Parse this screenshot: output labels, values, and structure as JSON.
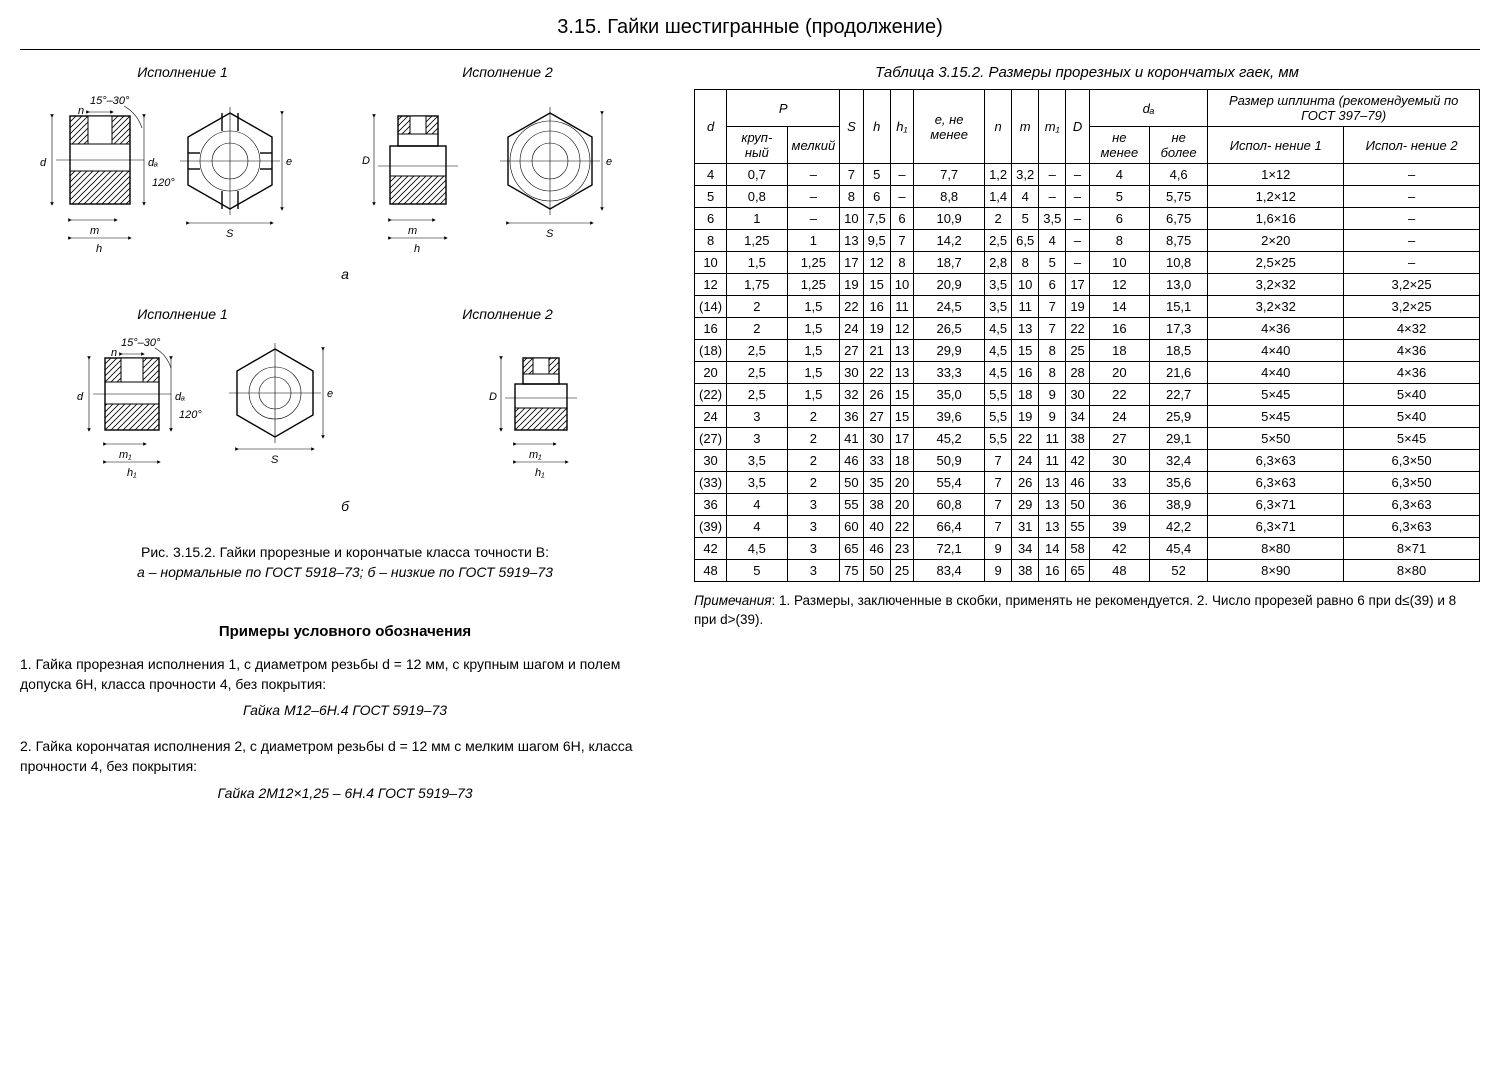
{
  "title": "3.15. Гайки шестигранные (продолжение)",
  "figure": {
    "exec1": "Исполнение 1",
    "exec2": "Исполнение 2",
    "label_a": "а",
    "label_b": "б",
    "angle": "15°–30°",
    "angle120": "120°",
    "d": "d",
    "da": "dₐ",
    "n": "n",
    "e": "e",
    "m": "m",
    "h": "h",
    "D": "D",
    "S": "S",
    "m1": "m₁",
    "h1": "h₁",
    "caption_line1": "Рис. 3.15.2. Гайки прорезные и корончатые класса точности В:",
    "caption_line2": "а – нормальные по ГОСТ 5918–73; б – низкие по ГОСТ 5919–73"
  },
  "examples": {
    "title": "Примеры условного обозначения",
    "ex1_text": "1. Гайка прорезная исполнения 1, с диаметром резьбы d = 12 мм, с крупным шагом и полем допуска 6Н, класса прочности 4, без покрытия:",
    "ex1_des": "Гайка М12–6Н.4 ГОСТ 5919–73",
    "ex2_text": "2. Гайка корончатая исполнения 2, с диаметром резьбы d = 12 мм с мелким шагом 6Н, класса прочности 4, без покрытия:",
    "ex2_des": "Гайка 2М12×1,25 – 6Н.4 ГОСТ 5919–73"
  },
  "table": {
    "caption": "Таблица 3.15.2.  Размеры прорезных  и корончатых гаек, мм",
    "headers": {
      "d": "d",
      "P": "P",
      "P_large": "круп-\nный",
      "P_small": "мелкий",
      "S": "S",
      "h": "h",
      "h1": "h₁",
      "e": "e,\nне\nменее",
      "n": "n",
      "m": "m",
      "m1": "m₁",
      "D": "D",
      "da": "dₐ",
      "da_min": "не\nменее",
      "da_max": "не\nболее",
      "splint": "Размер шплинта (рекомендуемый по ГОСТ 397–79)",
      "exec1": "Испол-\nнение 1",
      "exec2": "Испол-\nнение 2"
    },
    "rows": [
      [
        "4",
        "0,7",
        "–",
        "7",
        "5",
        "–",
        "7,7",
        "1,2",
        "3,2",
        "–",
        "–",
        "4",
        "4,6",
        "1×12",
        "–"
      ],
      [
        "5",
        "0,8",
        "–",
        "8",
        "6",
        "–",
        "8,8",
        "1,4",
        "4",
        "–",
        "–",
        "5",
        "5,75",
        "1,2×12",
        "–"
      ],
      [
        "6",
        "1",
        "–",
        "10",
        "7,5",
        "6",
        "10,9",
        "2",
        "5",
        "3,5",
        "–",
        "6",
        "6,75",
        "1,6×16",
        "–"
      ],
      [
        "8",
        "1,25",
        "1",
        "13",
        "9,5",
        "7",
        "14,2",
        "2,5",
        "6,5",
        "4",
        "–",
        "8",
        "8,75",
        "2×20",
        "–"
      ],
      [
        "10",
        "1,5",
        "1,25",
        "17",
        "12",
        "8",
        "18,7",
        "2,8",
        "8",
        "5",
        "–",
        "10",
        "10,8",
        "2,5×25",
        "–"
      ],
      [
        "12",
        "1,75",
        "1,25",
        "19",
        "15",
        "10",
        "20,9",
        "3,5",
        "10",
        "6",
        "17",
        "12",
        "13,0",
        "3,2×32",
        "3,2×25"
      ],
      [
        "(14)",
        "2",
        "1,5",
        "22",
        "16",
        "11",
        "24,5",
        "3,5",
        "11",
        "7",
        "19",
        "14",
        "15,1",
        "3,2×32",
        "3,2×25"
      ],
      [
        "16",
        "2",
        "1,5",
        "24",
        "19",
        "12",
        "26,5",
        "4,5",
        "13",
        "7",
        "22",
        "16",
        "17,3",
        "4×36",
        "4×32"
      ],
      [
        "(18)",
        "2,5",
        "1,5",
        "27",
        "21",
        "13",
        "29,9",
        "4,5",
        "15",
        "8",
        "25",
        "18",
        "18,5",
        "4×40",
        "4×36"
      ],
      [
        "20",
        "2,5",
        "1,5",
        "30",
        "22",
        "13",
        "33,3",
        "4,5",
        "16",
        "8",
        "28",
        "20",
        "21,6",
        "4×40",
        "4×36"
      ],
      [
        "(22)",
        "2,5",
        "1,5",
        "32",
        "26",
        "15",
        "35,0",
        "5,5",
        "18",
        "9",
        "30",
        "22",
        "22,7",
        "5×45",
        "5×40"
      ],
      [
        "24",
        "3",
        "2",
        "36",
        "27",
        "15",
        "39,6",
        "5,5",
        "19",
        "9",
        "34",
        "24",
        "25,9",
        "5×45",
        "5×40"
      ],
      [
        "(27)",
        "3",
        "2",
        "41",
        "30",
        "17",
        "45,2",
        "5,5",
        "22",
        "11",
        "38",
        "27",
        "29,1",
        "5×50",
        "5×45"
      ],
      [
        "30",
        "3,5",
        "2",
        "46",
        "33",
        "18",
        "50,9",
        "7",
        "24",
        "11",
        "42",
        "30",
        "32,4",
        "6,3×63",
        "6,3×50"
      ],
      [
        "(33)",
        "3,5",
        "2",
        "50",
        "35",
        "20",
        "55,4",
        "7",
        "26",
        "13",
        "46",
        "33",
        "35,6",
        "6,3×63",
        "6,3×50"
      ],
      [
        "36",
        "4",
        "3",
        "55",
        "38",
        "20",
        "60,8",
        "7",
        "29",
        "13",
        "50",
        "36",
        "38,9",
        "6,3×71",
        "6,3×63"
      ],
      [
        "(39)",
        "4",
        "3",
        "60",
        "40",
        "22",
        "66,4",
        "7",
        "31",
        "13",
        "55",
        "39",
        "42,2",
        "6,3×71",
        "6,3×63"
      ],
      [
        "42",
        "4,5",
        "3",
        "65",
        "46",
        "23",
        "72,1",
        "9",
        "34",
        "14",
        "58",
        "42",
        "45,4",
        "8×80",
        "8×71"
      ],
      [
        "48",
        "5",
        "3",
        "75",
        "50",
        "25",
        "83,4",
        "9",
        "38",
        "16",
        "65",
        "48",
        "52",
        "8×90",
        "8×80"
      ]
    ]
  },
  "notes": "Примечания: 1. Размеры, заключенные в скобки, применять не рекомендуется. 2. Число прорезей равно 6 при d≤(39) и 8 при d>(39)."
}
